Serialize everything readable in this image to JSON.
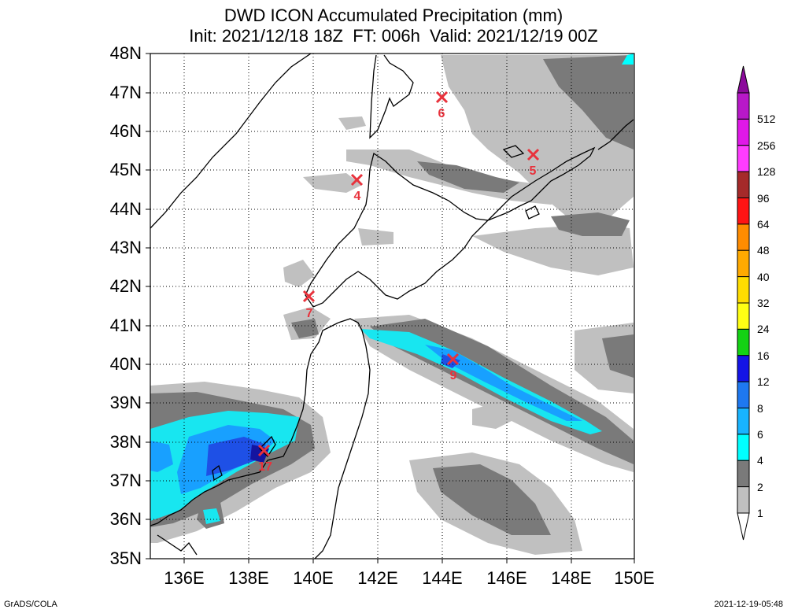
{
  "title": "DWD ICON Accumulated Precipitation (mm)",
  "subtitle": "Init: 2021/12/18 18Z  FT: 006h  Valid: 2021/12/19 00Z",
  "lat_labels": [
    "48N",
    "47N",
    "46N",
    "45N",
    "44N",
    "43N",
    "42N",
    "41N",
    "40N",
    "39N",
    "38N",
    "37N",
    "36N",
    "35N"
  ],
  "lon_labels": [
    "136E",
    "138E",
    "140E",
    "142E",
    "144E",
    "146E",
    "148E",
    "150E"
  ],
  "colorbar": {
    "levels": [
      "512",
      "256",
      "128",
      "96",
      "64",
      "48",
      "40",
      "32",
      "24",
      "16",
      "12",
      "8",
      "6",
      "4",
      "2",
      "1"
    ],
    "colors": [
      "#8c0a9c",
      "#b818c8",
      "#e018e8",
      "#ff3cff",
      "#a52a2a",
      "#ff1414",
      "#ff8c00",
      "#ffaa00",
      "#ffdd00",
      "#ffff14",
      "#14d214",
      "#1414e6",
      "#1e78f0",
      "#18b4ff",
      "#00ffff",
      "#7a7a7a",
      "#c0c0c0",
      "#ffffff"
    ]
  },
  "stations": [
    {
      "label": "6"
    },
    {
      "label": "5"
    },
    {
      "label": "4"
    },
    {
      "label": "7"
    },
    {
      "label": "9"
    },
    {
      "label": "17"
    }
  ],
  "marker_color": "#e8323c",
  "footer_left": "GrADS/COLA",
  "footer_right": "2021-12-19-05:48"
}
